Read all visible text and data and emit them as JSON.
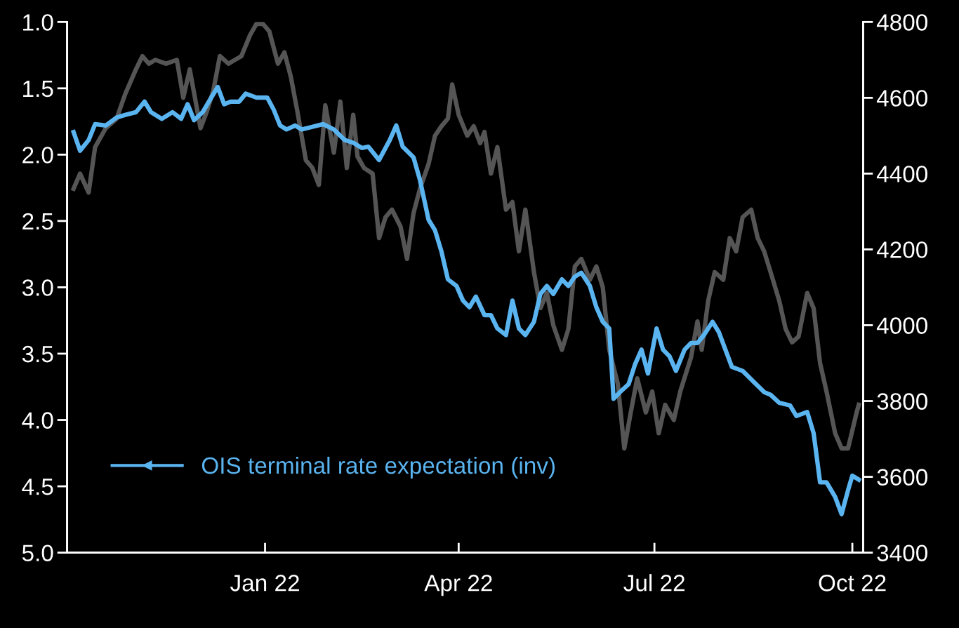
{
  "chart_data": {
    "type": "line",
    "xlim": [
      "2021-10-01",
      "2022-10-06"
    ],
    "xticks": [
      {
        "value": "2022-01-01",
        "label": "Jan 22"
      },
      {
        "value": "2022-04-01",
        "label": "Apr 22"
      },
      {
        "value": "2022-07-01",
        "label": "Jul 22"
      },
      {
        "value": "2022-10-01",
        "label": "Oct 22"
      }
    ],
    "ylim": [
      5.0,
      1.0
    ],
    "yticks": [
      {
        "value": 1,
        "label": "1.0"
      },
      1.5,
      {
        "value": 2,
        "label": "2.0"
      },
      2.5,
      {
        "value": 3,
        "label": "3.0"
      },
      3.5,
      {
        "value": 4,
        "label": "4.0"
      },
      4.5,
      {
        "value": 5,
        "label": "5.0"
      }
    ],
    "y2lim": [
      3400,
      4800
    ],
    "y2ticks": [
      3400,
      3600,
      3800,
      4000,
      4200,
      4400,
      4600,
      4800
    ],
    "grid": false,
    "legend": "bottom left",
    "line_style": "solid",
    "marker": "none",
    "series": [
      {
        "name": "OIS terminal rate expectation (inv)",
        "color": "#5ab4f0",
        "axis": "y",
        "x": [
          "2021-10-04",
          "2021-10-07",
          "2021-10-11",
          "2021-10-14",
          "2021-10-19",
          "2021-10-24",
          "2021-10-28",
          "2021-11-02",
          "2021-11-06",
          "2021-11-09",
          "2021-11-14",
          "2021-11-19",
          "2021-11-23",
          "2021-11-26",
          "2021-11-29",
          "2021-12-03",
          "2021-12-07",
          "2021-12-10",
          "2021-12-13",
          "2021-12-16",
          "2021-12-20",
          "2021-12-23",
          "2021-12-28",
          "2022-01-02",
          "2022-01-05",
          "2022-01-08",
          "2022-01-11",
          "2022-01-15",
          "2022-01-18",
          "2022-01-23",
          "2022-01-28",
          "2022-02-02",
          "2022-02-07",
          "2022-02-11",
          "2022-02-15",
          "2022-02-18",
          "2022-02-23",
          "2022-02-28",
          "2022-03-03",
          "2022-03-06",
          "2022-03-11",
          "2022-03-14",
          "2022-03-18",
          "2022-03-21",
          "2022-03-24",
          "2022-03-27",
          "2022-03-31",
          "2022-04-03",
          "2022-04-06",
          "2022-04-09",
          "2022-04-13",
          "2022-04-16",
          "2022-04-19",
          "2022-04-23",
          "2022-04-26",
          "2022-04-29",
          "2022-05-02",
          "2022-05-06",
          "2022-05-09",
          "2022-05-12",
          "2022-05-15",
          "2022-05-19",
          "2022-05-22",
          "2022-05-25",
          "2022-05-28",
          "2022-06-01",
          "2022-06-04",
          "2022-06-07",
          "2022-06-10",
          "2022-06-12",
          "2022-06-15",
          "2022-06-19",
          "2022-06-22",
          "2022-06-25",
          "2022-06-28",
          "2022-07-02",
          "2022-07-05",
          "2022-07-08",
          "2022-07-11",
          "2022-07-15",
          "2022-07-18",
          "2022-07-21",
          "2022-07-24",
          "2022-07-28",
          "2022-07-31",
          "2022-08-03",
          "2022-08-06",
          "2022-08-11",
          "2022-08-16",
          "2022-08-21",
          "2022-08-24",
          "2022-08-28",
          "2022-09-02",
          "2022-09-05",
          "2022-09-10",
          "2022-09-13",
          "2022-09-16",
          "2022-09-19",
          "2022-09-23",
          "2022-09-26",
          "2022-09-29",
          "2022-10-01",
          "2022-10-04"
        ],
        "values": [
          1.83,
          1.97,
          1.89,
          1.77,
          1.78,
          1.72,
          1.7,
          1.68,
          1.6,
          1.68,
          1.73,
          1.68,
          1.73,
          1.62,
          1.74,
          1.68,
          1.57,
          1.49,
          1.62,
          1.6,
          1.6,
          1.54,
          1.57,
          1.57,
          1.66,
          1.78,
          1.81,
          1.78,
          1.81,
          1.79,
          1.77,
          1.81,
          1.89,
          1.91,
          1.95,
          1.94,
          2.04,
          1.89,
          1.78,
          1.94,
          2.02,
          2.19,
          2.49,
          2.57,
          2.73,
          2.94,
          2.99,
          3.1,
          3.15,
          3.07,
          3.21,
          3.21,
          3.31,
          3.36,
          3.1,
          3.31,
          3.36,
          3.26,
          3.05,
          2.99,
          3.05,
          2.94,
          2.99,
          2.92,
          2.89,
          2.99,
          3.15,
          3.26,
          3.31,
          3.84,
          3.79,
          3.73,
          3.58,
          3.47,
          3.65,
          3.31,
          3.47,
          3.52,
          3.63,
          3.47,
          3.42,
          3.42,
          3.36,
          3.26,
          3.34,
          3.47,
          3.6,
          3.63,
          3.71,
          3.79,
          3.81,
          3.87,
          3.89,
          3.97,
          3.94,
          4.1,
          4.47,
          4.47,
          4.58,
          4.71,
          4.53,
          4.42,
          4.45
        ]
      },
      {
        "color": "#555555",
        "axis": "y2",
        "x": [
          "2021-10-04",
          "2021-10-07",
          "2021-10-11",
          "2021-10-14",
          "2021-10-19",
          "2021-10-24",
          "2021-10-28",
          "2021-11-02",
          "2021-11-05",
          "2021-11-08",
          "2021-11-11",
          "2021-11-16",
          "2021-11-21",
          "2021-11-24",
          "2021-11-27",
          "2021-12-02",
          "2021-12-05",
          "2021-12-08",
          "2021-12-11",
          "2021-12-15",
          "2021-12-18",
          "2021-12-21",
          "2021-12-25",
          "2021-12-28",
          "2021-12-31",
          "2022-01-03",
          "2022-01-07",
          "2022-01-10",
          "2022-01-13",
          "2022-01-16",
          "2022-01-20",
          "2022-01-23",
          "2022-01-26",
          "2022-01-29",
          "2022-02-02",
          "2022-02-05",
          "2022-02-08",
          "2022-02-11",
          "2022-02-13",
          "2022-02-16",
          "2022-02-20",
          "2022-02-23",
          "2022-02-26",
          "2022-03-01",
          "2022-03-05",
          "2022-03-08",
          "2022-03-11",
          "2022-03-14",
          "2022-03-18",
          "2022-03-21",
          "2022-03-24",
          "2022-03-27",
          "2022-03-29",
          "2022-04-01",
          "2022-04-05",
          "2022-04-08",
          "2022-04-11",
          "2022-04-13",
          "2022-04-16",
          "2022-04-19",
          "2022-04-23",
          "2022-04-26",
          "2022-04-29",
          "2022-05-02",
          "2022-05-06",
          "2022-05-09",
          "2022-05-12",
          "2022-05-15",
          "2022-05-19",
          "2022-05-22",
          "2022-05-25",
          "2022-05-28",
          "2022-06-01",
          "2022-06-04",
          "2022-06-07",
          "2022-06-10",
          "2022-06-14",
          "2022-06-17",
          "2022-06-20",
          "2022-06-23",
          "2022-06-27",
          "2022-06-30",
          "2022-07-03",
          "2022-07-06",
          "2022-07-10",
          "2022-07-13",
          "2022-07-18",
          "2022-07-21",
          "2022-07-23",
          "2022-07-26",
          "2022-07-29",
          "2022-08-02",
          "2022-08-05",
          "2022-08-08",
          "2022-08-11",
          "2022-08-15",
          "2022-08-18",
          "2022-08-21",
          "2022-08-24",
          "2022-08-28",
          "2022-08-31",
          "2022-09-03",
          "2022-09-06",
          "2022-09-10",
          "2022-09-13",
          "2022-09-16",
          "2022-09-19",
          "2022-09-23",
          "2022-09-26",
          "2022-09-29",
          "2022-10-03",
          "2022-10-04"
        ],
        "values": [
          4360,
          4400,
          4350,
          4470,
          4520,
          4545,
          4610,
          4675,
          4710,
          4690,
          4700,
          4690,
          4700,
          4600,
          4675,
          4520,
          4565,
          4620,
          4710,
          4690,
          4700,
          4710,
          4765,
          4795,
          4795,
          4775,
          4690,
          4720,
          4655,
          4565,
          4435,
          4415,
          4370,
          4580,
          4455,
          4590,
          4415,
          4555,
          4445,
          4415,
          4400,
          4230,
          4285,
          4305,
          4260,
          4175,
          4295,
          4360,
          4425,
          4500,
          4525,
          4545,
          4635,
          4555,
          4500,
          4525,
          4480,
          4510,
          4400,
          4470,
          4305,
          4325,
          4195,
          4305,
          4140,
          4045,
          4085,
          4000,
          3935,
          3990,
          4155,
          4175,
          4120,
          4155,
          4100,
          3935,
          3845,
          3675,
          3770,
          3860,
          3770,
          3825,
          3715,
          3790,
          3750,
          3825,
          3915,
          4010,
          3935,
          4065,
          4140,
          4120,
          4230,
          4195,
          4285,
          4305,
          4230,
          4195,
          4140,
          4065,
          3990,
          3955,
          3970,
          4085,
          4045,
          3900,
          3825,
          3715,
          3675,
          3675,
          3770,
          3790
        ]
      }
    ]
  }
}
